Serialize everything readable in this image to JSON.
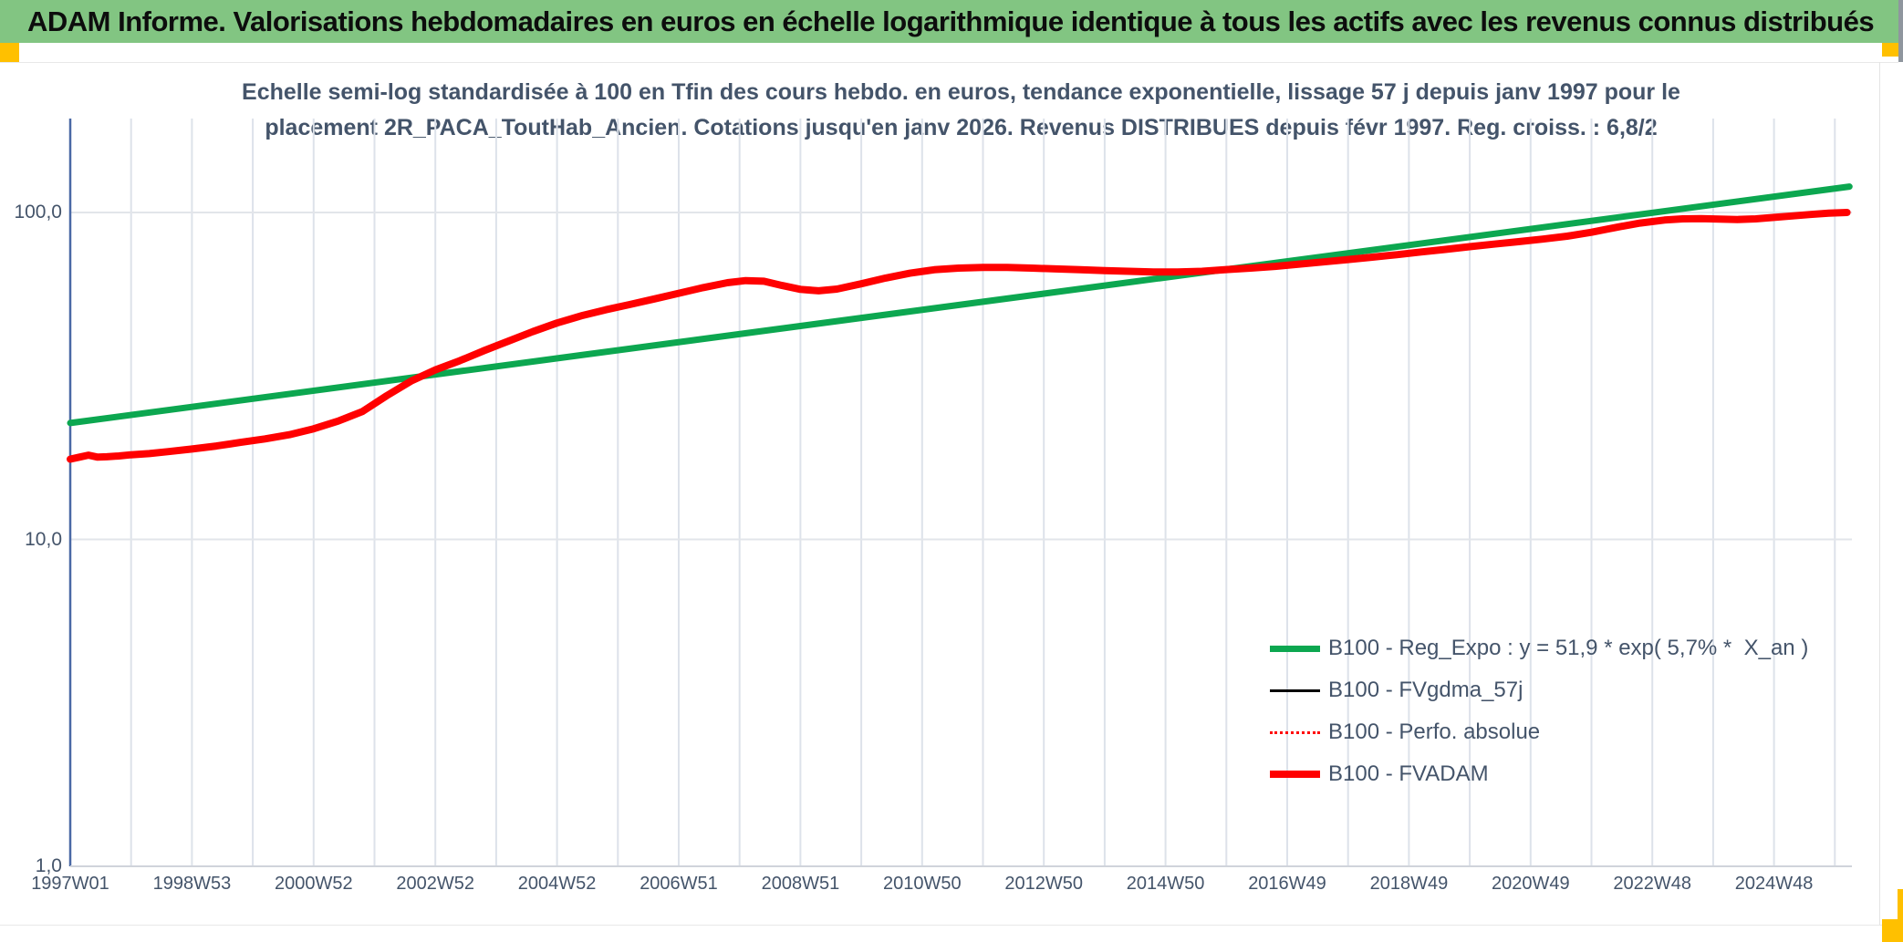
{
  "banner": {
    "title": "ADAM Informe. Valorisations hebdomadaires en euros en échelle logarithmique identique à tous les actifs avec les revenus connus distribués",
    "background_color": "#82C582",
    "accent_color": "#FFC000"
  },
  "chart_data": {
    "type": "line",
    "title_line1": "Echelle semi-log standardisée à 100 en Tfin des cours hebdo. en euros, tendance exponentielle, lissage 57 j depuis janv 1997 pour le",
    "title_line2": "placement 2R_PACA_ToutHab_Ancien. Cotations jusqu'en janv 2026. Revenus DISTRIBUES depuis févr 1997. Reg. croiss. : 6,8/2",
    "y_axis": {
      "scale": "log",
      "ticks": [
        "100,0",
        "10,0",
        "1,0"
      ],
      "tick_values": [
        100,
        10,
        1
      ],
      "range": [
        1,
        200
      ],
      "grid": "on"
    },
    "x_axis": {
      "tick_labels": [
        "1997W01",
        "1998W53",
        "2000W52",
        "2002W52",
        "2004W52",
        "2006W51",
        "2008W51",
        "2010W50",
        "2012W50",
        "2014W50",
        "2016W49",
        "2018W49",
        "2020W49",
        "2022W48",
        "2024W48"
      ],
      "tick_years": [
        1997,
        1999,
        2001,
        2003,
        2005,
        2007,
        2009,
        2011,
        2013,
        2015,
        2017,
        2019,
        2021,
        2023,
        2025
      ],
      "year_start": 1997,
      "year_end": 2026.3,
      "gridline_every_years": 1,
      "grid": "on"
    },
    "legend_position": "inside-bottom-right",
    "series": [
      {
        "name": "B100 - Reg_Expo : y = 51,9 * exp( 5,7% *  X_an )",
        "color": "#0CA750",
        "style": "solid",
        "width": 7,
        "points": [
          [
            1997.0,
            22.7
          ],
          [
            2026.24,
            120.0
          ]
        ]
      },
      {
        "name": "B100 - FVgdma_57j",
        "color": "#000000",
        "style": "solid",
        "width": 3,
        "data_ref": "fvadam"
      },
      {
        "name": "B100 - Perfo. absolue",
        "color": "#FF0000",
        "style": "dotted",
        "width": 2,
        "data_ref": "fvadam"
      },
      {
        "name": "B100 - FVADAM",
        "color": "#FF0000",
        "style": "solid",
        "width": 8,
        "data_ref": "fvadam"
      }
    ],
    "regression": {
      "a": 51.9,
      "growth_rate_pct_per_year": 5.7,
      "note": "y = 51,9 * exp( 5,7% * X_an )"
    },
    "fvadam_points": [
      [
        1997.0,
        17.6
      ],
      [
        1997.15,
        17.85
      ],
      [
        1997.3,
        18.1
      ],
      [
        1997.45,
        17.85
      ],
      [
        1997.6,
        17.9
      ],
      [
        1997.8,
        18.0
      ],
      [
        1998.0,
        18.15
      ],
      [
        1998.3,
        18.3
      ],
      [
        1998.6,
        18.55
      ],
      [
        1999.0,
        18.9
      ],
      [
        1999.4,
        19.3
      ],
      [
        1999.8,
        19.8
      ],
      [
        2000.2,
        20.3
      ],
      [
        2000.6,
        20.9
      ],
      [
        2001.0,
        21.8
      ],
      [
        2001.4,
        23.0
      ],
      [
        2001.8,
        24.6
      ],
      [
        2002.2,
        27.5
      ],
      [
        2002.6,
        30.5
      ],
      [
        2003.0,
        33.0
      ],
      [
        2003.4,
        35.2
      ],
      [
        2003.8,
        37.8
      ],
      [
        2004.2,
        40.4
      ],
      [
        2004.6,
        43.2
      ],
      [
        2005.0,
        45.9
      ],
      [
        2005.4,
        48.3
      ],
      [
        2005.8,
        50.4
      ],
      [
        2006.2,
        52.3
      ],
      [
        2006.6,
        54.4
      ],
      [
        2007.0,
        56.6
      ],
      [
        2007.4,
        58.9
      ],
      [
        2007.8,
        61.0
      ],
      [
        2008.1,
        61.9
      ],
      [
        2008.4,
        61.6
      ],
      [
        2008.7,
        59.8
      ],
      [
        2009.0,
        58.2
      ],
      [
        2009.3,
        57.6
      ],
      [
        2009.6,
        58.3
      ],
      [
        2010.0,
        60.5
      ],
      [
        2010.4,
        63.0
      ],
      [
        2010.8,
        65.2
      ],
      [
        2011.2,
        66.8
      ],
      [
        2011.6,
        67.6
      ],
      [
        2012.0,
        67.9
      ],
      [
        2012.4,
        67.9
      ],
      [
        2012.8,
        67.6
      ],
      [
        2013.2,
        67.2
      ],
      [
        2013.6,
        66.8
      ],
      [
        2014.0,
        66.4
      ],
      [
        2014.4,
        66.1
      ],
      [
        2014.8,
        65.8
      ],
      [
        2015.2,
        65.8
      ],
      [
        2015.6,
        66.1
      ],
      [
        2016.0,
        66.9
      ],
      [
        2016.4,
        67.6
      ],
      [
        2016.8,
        68.4
      ],
      [
        2017.2,
        69.5
      ],
      [
        2017.6,
        70.6
      ],
      [
        2018.0,
        71.8
      ],
      [
        2018.4,
        73.0
      ],
      [
        2018.8,
        74.3
      ],
      [
        2019.2,
        75.7
      ],
      [
        2019.6,
        77.1
      ],
      [
        2020.0,
        78.6
      ],
      [
        2020.4,
        80.0
      ],
      [
        2020.8,
        81.4
      ],
      [
        2021.2,
        82.9
      ],
      [
        2021.6,
        84.6
      ],
      [
        2022.0,
        87.0
      ],
      [
        2022.4,
        90.0
      ],
      [
        2022.8,
        92.8
      ],
      [
        2023.2,
        94.8
      ],
      [
        2023.5,
        95.6
      ],
      [
        2023.8,
        95.8
      ],
      [
        2024.1,
        95.4
      ],
      [
        2024.4,
        95.2
      ],
      [
        2024.7,
        95.6
      ],
      [
        2025.0,
        96.6
      ],
      [
        2025.3,
        97.6
      ],
      [
        2025.6,
        98.6
      ],
      [
        2025.9,
        99.5
      ],
      [
        2026.2,
        100.0
      ]
    ]
  }
}
